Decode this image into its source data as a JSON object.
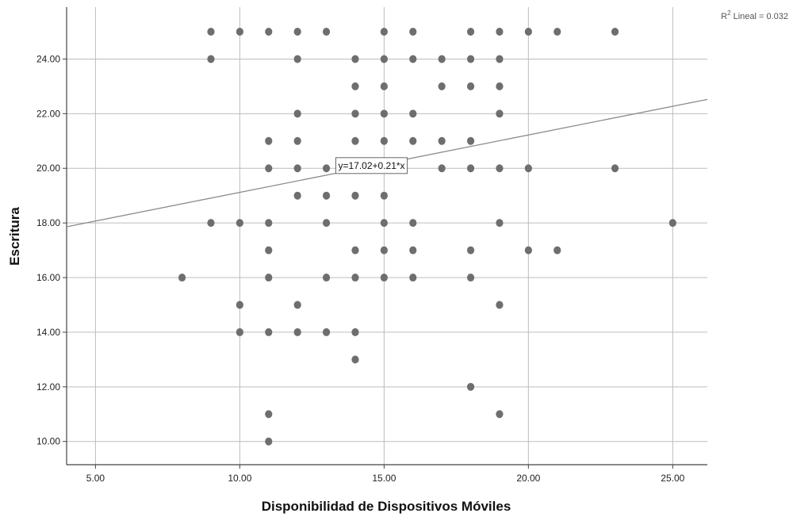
{
  "chart_data": {
    "type": "scatter",
    "title": "",
    "xlabel": "Disponibilidad de Dispositivos Móviles",
    "ylabel": "Escritura",
    "xlim": [
      4,
      26.2
    ],
    "ylim": [
      9.15,
      25.9
    ],
    "x_ticks": [
      "5.00",
      "10.00",
      "15.00",
      "20.00",
      "25.00"
    ],
    "y_ticks": [
      "10.00",
      "12.00",
      "14.00",
      "16.00",
      "18.00",
      "20.00",
      "22.00",
      "24.00"
    ],
    "grid": true,
    "colors": {
      "point": "#6e6e6e",
      "line": "#8c8c8c",
      "grid": "#bdbdbd",
      "axis": "#444444"
    },
    "points": [
      [
        9,
        25
      ],
      [
        10,
        25
      ],
      [
        11,
        25
      ],
      [
        12,
        25
      ],
      [
        13,
        25
      ],
      [
        15,
        25
      ],
      [
        16,
        25
      ],
      [
        18,
        25
      ],
      [
        19,
        25
      ],
      [
        20,
        25
      ],
      [
        21,
        25
      ],
      [
        23,
        25
      ],
      [
        9,
        24
      ],
      [
        12,
        24
      ],
      [
        14,
        24
      ],
      [
        15,
        24
      ],
      [
        16,
        24
      ],
      [
        17,
        24
      ],
      [
        18,
        24
      ],
      [
        19,
        24
      ],
      [
        14,
        23
      ],
      [
        15,
        23
      ],
      [
        17,
        23
      ],
      [
        18,
        23
      ],
      [
        19,
        23
      ],
      [
        12,
        22
      ],
      [
        14,
        22
      ],
      [
        15,
        22
      ],
      [
        16,
        22
      ],
      [
        19,
        22
      ],
      [
        11,
        21
      ],
      [
        12,
        21
      ],
      [
        14,
        21
      ],
      [
        15,
        21
      ],
      [
        16,
        21
      ],
      [
        17,
        21
      ],
      [
        18,
        21
      ],
      [
        11,
        20
      ],
      [
        12,
        20
      ],
      [
        13,
        20
      ],
      [
        17,
        20
      ],
      [
        18,
        20
      ],
      [
        19,
        20
      ],
      [
        20,
        20
      ],
      [
        23,
        20
      ],
      [
        12,
        19
      ],
      [
        13,
        19
      ],
      [
        14,
        19
      ],
      [
        15,
        19
      ],
      [
        9,
        18
      ],
      [
        10,
        18
      ],
      [
        11,
        18
      ],
      [
        13,
        18
      ],
      [
        15,
        18
      ],
      [
        16,
        18
      ],
      [
        19,
        18
      ],
      [
        25,
        18
      ],
      [
        11,
        17
      ],
      [
        14,
        17
      ],
      [
        15,
        17
      ],
      [
        16,
        17
      ],
      [
        18,
        17
      ],
      [
        20,
        17
      ],
      [
        21,
        17
      ],
      [
        8,
        16
      ],
      [
        11,
        16
      ],
      [
        13,
        16
      ],
      [
        14,
        16
      ],
      [
        15,
        16
      ],
      [
        16,
        16
      ],
      [
        18,
        16
      ],
      [
        10,
        15
      ],
      [
        12,
        15
      ],
      [
        19,
        15
      ],
      [
        10,
        14
      ],
      [
        11,
        14
      ],
      [
        12,
        14
      ],
      [
        13,
        14
      ],
      [
        14,
        14
      ],
      [
        14,
        13
      ],
      [
        18,
        12
      ],
      [
        11,
        11
      ],
      [
        19,
        11
      ],
      [
        11,
        10
      ]
    ],
    "fit_line": {
      "intercept": 17.02,
      "slope": 0.21,
      "equation": "y=17.02+0.21*x",
      "equation_at": [
        13.3,
        20.1
      ]
    },
    "r2_label": {
      "base": "R",
      "sup": "2",
      "rest": " Lineal = 0.032"
    }
  }
}
